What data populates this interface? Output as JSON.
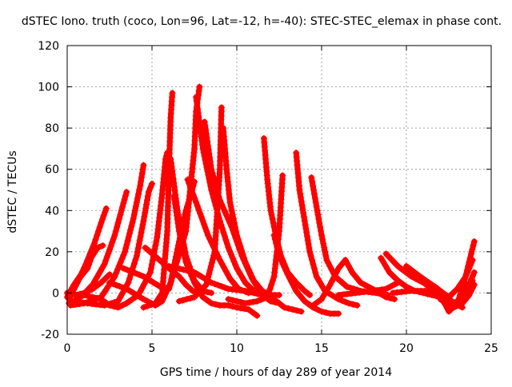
{
  "chart_data": {
    "type": "line",
    "title": "dSTEC Iono. truth (coco, Lon=96, Lat=-12, h=-40): STEC-STEC_elemax in phase cont.",
    "xlabel": "GPS time / hours of day 289 of year 2014",
    "ylabel": "dSTEC  / TECUs",
    "xlim": [
      0,
      25
    ],
    "ylim": [
      -20,
      120
    ],
    "xticks": [
      0,
      5,
      10,
      15,
      20,
      25
    ],
    "yticks": [
      -20,
      0,
      20,
      40,
      60,
      80,
      100,
      120
    ],
    "grid": true,
    "marker": "+",
    "color": "#ff0000",
    "series": [
      {
        "values": [
          [
            0.05,
            -1
          ],
          [
            0.4,
            4
          ],
          [
            0.9,
            10
          ],
          [
            1.4,
            17
          ],
          [
            1.8,
            22
          ],
          [
            2.1,
            23
          ]
        ]
      },
      {
        "values": [
          [
            0.1,
            -3
          ],
          [
            0.6,
            5
          ],
          [
            1.1,
            14
          ],
          [
            1.6,
            24
          ],
          [
            2.0,
            34
          ],
          [
            2.3,
            41
          ]
        ]
      },
      {
        "values": [
          [
            0.1,
            -5
          ],
          [
            0.8,
            -2
          ],
          [
            1.5,
            4
          ],
          [
            2.2,
            14
          ],
          [
            2.8,
            28
          ],
          [
            3.2,
            40
          ],
          [
            3.5,
            49
          ]
        ]
      },
      {
        "values": [
          [
            0.2,
            -6
          ],
          [
            1.0,
            -5
          ],
          [
            2.0,
            -2
          ],
          [
            2.8,
            8
          ],
          [
            3.4,
            20
          ],
          [
            3.9,
            36
          ],
          [
            4.3,
            52
          ],
          [
            4.5,
            62
          ]
        ]
      },
      {
        "values": [
          [
            0.3,
            -4
          ],
          [
            1.2,
            -5
          ],
          [
            2.2,
            -6
          ],
          [
            3.0,
            -4
          ],
          [
            3.6,
            5
          ],
          [
            4.1,
            18
          ],
          [
            4.5,
            35
          ],
          [
            4.8,
            49
          ],
          [
            5.0,
            53
          ]
        ]
      },
      {
        "values": [
          [
            4.6,
            22
          ],
          [
            5.3,
            17
          ],
          [
            6.0,
            12
          ],
          [
            6.6,
            8
          ],
          [
            7.0,
            4
          ],
          [
            7.4,
            1
          ],
          [
            7.8,
            0
          ]
        ]
      },
      {
        "values": [
          [
            1.0,
            -1
          ],
          [
            2.0,
            -3
          ],
          [
            2.5,
            -6
          ],
          [
            3.0,
            -7
          ],
          [
            3.5,
            -5
          ],
          [
            4.2,
            -1
          ],
          [
            4.9,
            10
          ],
          [
            5.3,
            27
          ],
          [
            5.6,
            48
          ],
          [
            5.8,
            65
          ],
          [
            5.9,
            68
          ]
        ]
      },
      {
        "values": [
          [
            2.5,
            5
          ],
          [
            3.5,
            2
          ],
          [
            4.5,
            -3
          ],
          [
            5.2,
            -6
          ],
          [
            5.6,
            -4
          ],
          [
            6.1,
            5
          ],
          [
            6.6,
            25
          ],
          [
            7.0,
            40
          ],
          [
            7.3,
            48
          ],
          [
            7.5,
            54
          ]
        ]
      },
      {
        "values": [
          [
            4.5,
            -7
          ],
          [
            5.2,
            -5
          ],
          [
            5.6,
            0
          ],
          [
            5.9,
            30
          ],
          [
            6.0,
            60
          ],
          [
            6.1,
            85
          ],
          [
            6.2,
            97
          ]
        ]
      },
      {
        "values": [
          [
            6.1,
            65
          ],
          [
            6.5,
            40
          ],
          [
            7.0,
            18
          ],
          [
            7.5,
            6
          ],
          [
            8.0,
            1
          ],
          [
            8.5,
            0
          ]
        ]
      },
      {
        "values": [
          [
            3.3,
            12
          ],
          [
            4.5,
            8
          ],
          [
            5.5,
            3
          ],
          [
            6.0,
            2
          ],
          [
            7.0,
            30
          ],
          [
            7.5,
            70
          ],
          [
            7.6,
            88
          ],
          [
            7.8,
            100
          ]
        ]
      },
      {
        "values": [
          [
            6.3,
            47
          ],
          [
            6.6,
            30
          ],
          [
            7.0,
            15
          ],
          [
            7.5,
            5
          ],
          [
            8.0,
            -2
          ],
          [
            8.5,
            -5
          ],
          [
            9.0,
            -6
          ],
          [
            9.5,
            -6
          ],
          [
            10.0,
            -7
          ],
          [
            10.7,
            -8
          ],
          [
            11.2,
            -11
          ]
        ]
      },
      {
        "values": [
          [
            7.1,
            55
          ],
          [
            7.6,
            44
          ],
          [
            8.3,
            28
          ],
          [
            9.0,
            16
          ],
          [
            9.6,
            7
          ],
          [
            10.1,
            2
          ],
          [
            10.7,
            0
          ]
        ]
      },
      {
        "values": [
          [
            7.6,
            95
          ],
          [
            8.0,
            70
          ],
          [
            8.5,
            50
          ],
          [
            9.0,
            35
          ],
          [
            9.5,
            22
          ],
          [
            10.0,
            12
          ],
          [
            10.5,
            5
          ],
          [
            11.0,
            1
          ],
          [
            11.5,
            -1
          ]
        ]
      },
      {
        "values": [
          [
            8.1,
            83
          ],
          [
            8.5,
            60
          ],
          [
            9.0,
            45
          ],
          [
            9.7,
            32
          ],
          [
            10.3,
            18
          ],
          [
            10.9,
            7
          ],
          [
            11.5,
            -1
          ],
          [
            12.0,
            -4
          ],
          [
            12.5,
            -5
          ]
        ]
      },
      {
        "values": [
          [
            6.6,
            -4
          ],
          [
            7.5,
            -2
          ],
          [
            8.2,
            4
          ],
          [
            8.7,
            20
          ],
          [
            9.0,
            60
          ],
          [
            9.1,
            90
          ]
        ]
      },
      {
        "values": [
          [
            9.2,
            80
          ],
          [
            9.4,
            60
          ],
          [
            9.6,
            44
          ],
          [
            10.0,
            28
          ],
          [
            10.5,
            15
          ],
          [
            11.0,
            6
          ],
          [
            11.5,
            1
          ],
          [
            12.0,
            -1
          ],
          [
            12.5,
            -1
          ]
        ]
      },
      {
        "values": [
          [
            6.0,
            13
          ],
          [
            7.5,
            10
          ],
          [
            8.5,
            5
          ],
          [
            9.5,
            2
          ],
          [
            10.5,
            1
          ],
          [
            11.5,
            -1
          ],
          [
            12.2,
            -3
          ],
          [
            12.8,
            -7
          ],
          [
            13.3,
            -8
          ],
          [
            13.8,
            -9
          ]
        ]
      },
      {
        "values": [
          [
            11.6,
            75
          ],
          [
            11.8,
            55
          ],
          [
            12.0,
            40
          ],
          [
            12.3,
            28
          ],
          [
            12.6,
            18
          ],
          [
            13.0,
            10
          ],
          [
            13.5,
            5
          ],
          [
            14.0,
            1
          ],
          [
            14.3,
            -1
          ]
        ]
      },
      {
        "values": [
          [
            9.5,
            -3
          ],
          [
            10.5,
            -5
          ],
          [
            11.2,
            -4
          ],
          [
            11.8,
            -2
          ],
          [
            12.2,
            8
          ],
          [
            12.5,
            30
          ],
          [
            12.7,
            57
          ]
        ]
      },
      {
        "values": [
          [
            12.2,
            28
          ],
          [
            12.5,
            18
          ],
          [
            13.0,
            9
          ],
          [
            13.5,
            1
          ],
          [
            14.0,
            -4
          ],
          [
            14.5,
            -7
          ],
          [
            15.0,
            -9
          ],
          [
            15.5,
            -10
          ],
          [
            16.0,
            -10
          ]
        ]
      },
      {
        "values": [
          [
            13.5,
            68
          ],
          [
            13.7,
            50
          ],
          [
            14.0,
            35
          ],
          [
            14.3,
            20
          ],
          [
            14.7,
            8
          ],
          [
            15.2,
            1
          ],
          [
            16.0,
            -3
          ],
          [
            16.6,
            -5
          ],
          [
            17.1,
            -6
          ]
        ]
      },
      {
        "values": [
          [
            14.4,
            56
          ],
          [
            14.7,
            42
          ],
          [
            15.0,
            28
          ],
          [
            15.3,
            16
          ],
          [
            15.8,
            8
          ],
          [
            16.5,
            3
          ],
          [
            17.3,
            1
          ],
          [
            18.2,
            0
          ],
          [
            18.9,
            -1
          ]
        ]
      },
      {
        "values": [
          [
            14.5,
            -6
          ],
          [
            15.0,
            -3
          ],
          [
            15.5,
            4
          ],
          [
            16.0,
            12
          ],
          [
            16.4,
            16
          ]
        ]
      },
      {
        "values": [
          [
            16.4,
            16
          ],
          [
            16.8,
            10
          ],
          [
            17.3,
            5
          ],
          [
            18.0,
            2
          ],
          [
            18.8,
            -2
          ],
          [
            19.3,
            -3
          ]
        ]
      },
      {
        "values": [
          [
            16.0,
            -1
          ],
          [
            17.0,
            0
          ],
          [
            18.0,
            1
          ],
          [
            18.8,
            2
          ],
          [
            19.5,
            5
          ]
        ]
      },
      {
        "values": [
          [
            18.5,
            17
          ],
          [
            19.0,
            10
          ],
          [
            19.5,
            6
          ],
          [
            20.0,
            3
          ],
          [
            20.5,
            1
          ],
          [
            21.0,
            0
          ],
          [
            21.5,
            -1
          ],
          [
            22.0,
            -2
          ]
        ]
      },
      {
        "values": [
          [
            18.8,
            19
          ],
          [
            19.5,
            13
          ],
          [
            20.3,
            8
          ],
          [
            21.0,
            5
          ],
          [
            21.7,
            3
          ],
          [
            22.3,
            -1
          ],
          [
            22.8,
            -5
          ],
          [
            23.3,
            -7
          ]
        ]
      },
      {
        "values": [
          [
            19.2,
            0
          ],
          [
            20.2,
            1
          ],
          [
            21.3,
            1
          ],
          [
            22.0,
            -2
          ],
          [
            22.5,
            -8
          ],
          [
            23.0,
            -5
          ],
          [
            23.5,
            0
          ],
          [
            23.9,
            6
          ]
        ]
      },
      {
        "values": [
          [
            20.0,
            13
          ],
          [
            20.8,
            8
          ],
          [
            21.5,
            4
          ],
          [
            22.0,
            1
          ],
          [
            22.5,
            -2
          ],
          [
            23.0,
            2
          ],
          [
            23.5,
            8
          ],
          [
            23.9,
            16
          ]
        ]
      },
      {
        "values": [
          [
            21.0,
            5
          ],
          [
            21.7,
            1
          ],
          [
            22.2,
            -4
          ],
          [
            22.5,
            -9
          ],
          [
            23.0,
            -5
          ],
          [
            23.4,
            5
          ],
          [
            23.7,
            15
          ],
          [
            24.0,
            25
          ]
        ]
      },
      {
        "values": [
          [
            22.0,
            -3
          ],
          [
            22.5,
            -6
          ],
          [
            23.0,
            -4
          ],
          [
            23.5,
            0
          ],
          [
            24.0,
            10
          ]
        ]
      },
      {
        "values": [
          [
            22.2,
            -2
          ],
          [
            22.8,
            -7
          ],
          [
            23.3,
            -5
          ],
          [
            23.7,
            -1
          ],
          [
            24.0,
            4
          ]
        ]
      },
      {
        "values": [
          [
            0.0,
            0
          ],
          [
            0.5,
            -1
          ],
          [
            1.0,
            0
          ],
          [
            1.5,
            2
          ],
          [
            2.0,
            5
          ],
          [
            2.5,
            9
          ]
        ]
      },
      {
        "values": [
          [
            0.0,
            -2
          ],
          [
            0.4,
            3
          ],
          [
            0.8,
            8
          ],
          [
            1.2,
            12
          ],
          [
            1.5,
            19
          ]
        ]
      }
    ]
  }
}
